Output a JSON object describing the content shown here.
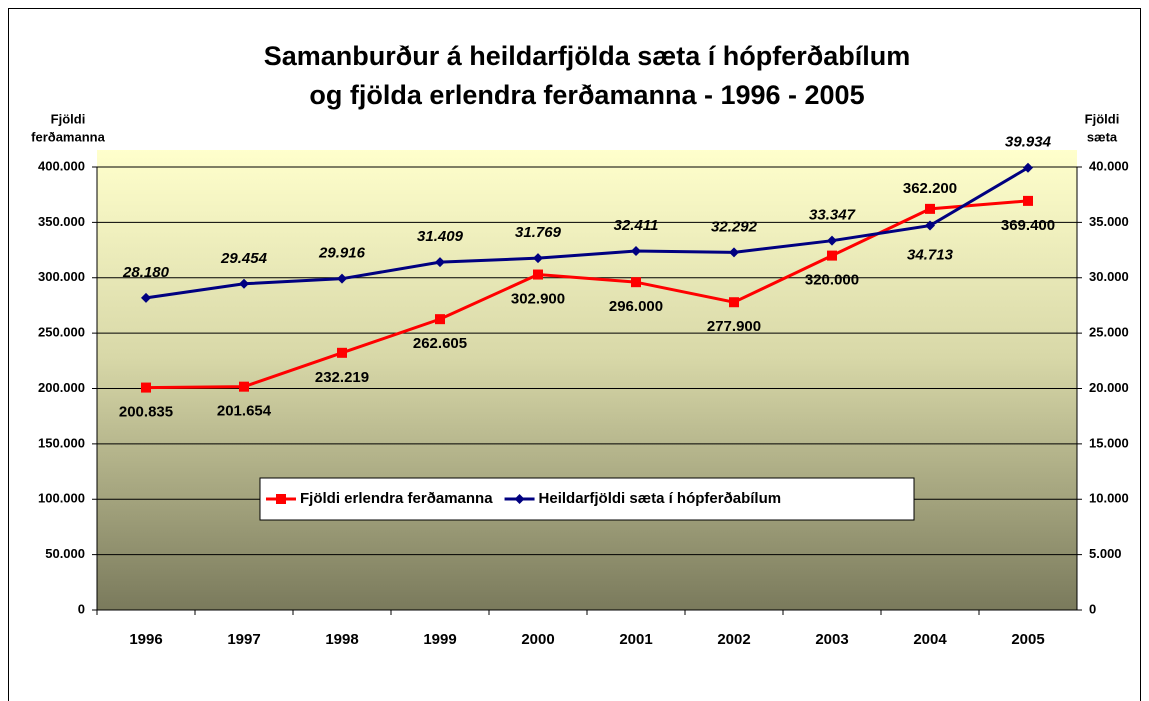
{
  "chart_data": {
    "type": "line",
    "title": [
      "Samanburður á heildarfjölda sæta í hópferðabílum",
      "og  fjölda erlendra ferðamanna  - 1996 - 2005"
    ],
    "y_label": [
      "Fjöldi",
      "ferðamanna"
    ],
    "y2_label": [
      "Fjöldi",
      "sæta"
    ],
    "categories": [
      "1996",
      "1997",
      "1998",
      "1999",
      "2000",
      "2001",
      "2002",
      "2003",
      "2004",
      "2005"
    ],
    "series": [
      {
        "name": "Fjöldi erlendra ferðamanna",
        "color": "#ff0000",
        "marker": "square",
        "values": [
          200835,
          201654,
          232219,
          262605,
          302900,
          296000,
          277900,
          320000,
          362200,
          369400
        ],
        "value_labels": [
          "200.835",
          "201.654",
          "232.219",
          "262.605",
          "302.900",
          "296.000",
          "277.900",
          "320.000",
          "362.200",
          "369.400"
        ]
      },
      {
        "name": "Heildarfjöldi sæta í hópferðabílum",
        "color": "#000080",
        "marker": "diamond",
        "axis": "y2",
        "values": [
          28180,
          29454,
          29916,
          31409,
          31769,
          32411,
          32292,
          33347,
          34713,
          39934
        ],
        "value_labels": [
          "28.180",
          "29.454",
          "29.916",
          "31.409",
          "31.769",
          "32.411",
          "32.292",
          "33.347",
          "34.713",
          "39.934"
        ]
      }
    ],
    "ylim": [
      0,
      400000
    ],
    "yticks": [
      0,
      {
        "value": 50000,
        "label": "50.000"
      },
      {
        "value": 100000,
        "label": "100.000"
      },
      {
        "value": 150000,
        "label": "150.000"
      },
      {
        "value": 200000,
        "label": "200.000"
      },
      {
        "value": 250000,
        "label": "250.000"
      },
      {
        "value": 300000,
        "label": "300.000"
      },
      {
        "value": 350000,
        "label": "350.000"
      },
      {
        "value": 400000,
        "label": "400.000"
      }
    ],
    "y2lim": [
      0,
      40000
    ],
    "y2ticks": [
      0,
      {
        "value": 5000,
        "label": "5.000"
      },
      {
        "value": 10000,
        "label": "10.000"
      },
      {
        "value": 15000,
        "label": "15.000"
      },
      {
        "value": 20000,
        "label": "20.000"
      },
      {
        "value": 25000,
        "label": "25.000"
      },
      {
        "value": 30000,
        "label": "30.000"
      },
      {
        "value": 35000,
        "label": "35.000"
      },
      {
        "value": 40000,
        "label": "40.000"
      }
    ],
    "grid": true,
    "legend": "center"
  }
}
